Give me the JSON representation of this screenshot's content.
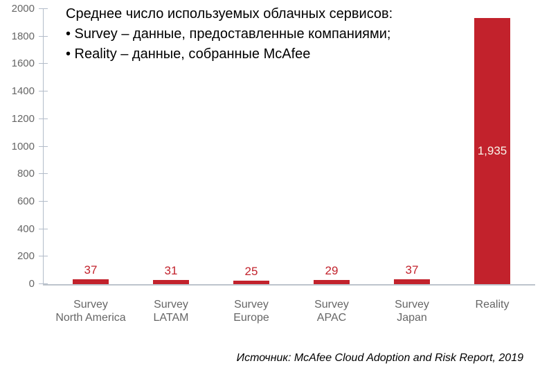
{
  "title": {
    "lines": [
      "Среднее число используемых облачных сервисов:",
      "• Survey – данные, предоставленные компаниями;",
      "• Reality – данные, собранные McAfee"
    ]
  },
  "source": "Источник: McAfee Cloud Adoption and Risk Report, 2019",
  "colors": {
    "bar": "#c2222c",
    "value_label": "#c2222c",
    "inside_value_label": "#f9f4e9",
    "axis_line": "#b3bcc9",
    "baseline": "#bdc4cc",
    "axis_text": "#666666",
    "title_text": "#000000"
  },
  "chart_data": {
    "type": "bar",
    "categories": [
      [
        "Survey",
        "North America"
      ],
      [
        "Survey",
        "LATAM"
      ],
      [
        "Survey",
        "Europe"
      ],
      [
        "Survey",
        "APAC"
      ],
      [
        "Survey",
        "Japan"
      ],
      [
        "Reality"
      ]
    ],
    "values": [
      37,
      31,
      25,
      29,
      37,
      1935
    ],
    "labels": [
      "37",
      "31",
      "25",
      "29",
      "37",
      "1,935"
    ],
    "title": "Среднее число используемых облачных сервисов",
    "xlabel": "",
    "ylabel": "",
    "ylim": [
      0,
      2000
    ],
    "ytick_step": 200,
    "ytick_labels": [
      "2000",
      "1800",
      "1600",
      "1400",
      "1200",
      "1000",
      "800",
      "600",
      "400",
      "200",
      "0"
    ],
    "grid": false,
    "legend_position": "none",
    "bar_color": "#c2222c",
    "annotation": "Value label of last bar shown inside the bar in white; other value labels shown above bars in red"
  }
}
